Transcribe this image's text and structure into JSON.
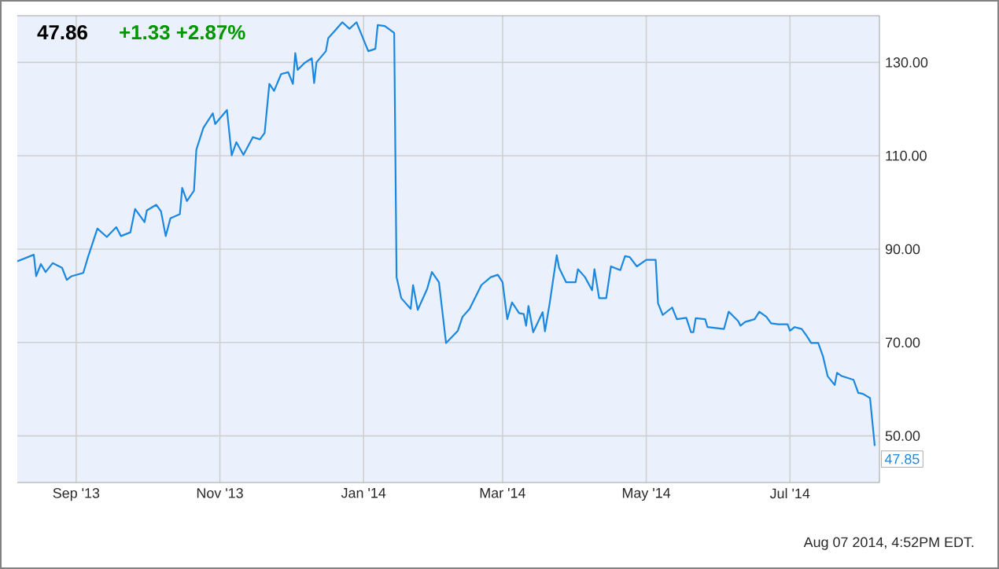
{
  "chart_data": {
    "type": "line",
    "title": "47.86",
    "subtitle": "+1.33  +2.87%",
    "x": [
      "2013-08-07",
      "2013-08-14",
      "2013-08-15",
      "2013-08-17",
      "2013-08-19",
      "2013-08-22",
      "2013-08-26",
      "2013-08-28",
      "2013-08-30",
      "2013-09-04",
      "2013-09-06",
      "2013-09-10",
      "2013-09-14",
      "2013-09-18",
      "2013-09-20",
      "2013-09-24",
      "2013-09-26",
      "2013-09-30",
      "2013-10-01",
      "2013-10-05",
      "2013-10-07",
      "2013-10-09",
      "2013-10-11",
      "2013-10-15",
      "2013-10-16",
      "2013-10-18",
      "2013-10-21",
      "2013-10-22",
      "2013-10-25",
      "2013-10-29",
      "2013-10-30",
      "2013-11-04",
      "2013-11-06",
      "2013-11-08",
      "2013-11-11",
      "2013-11-15",
      "2013-11-18",
      "2013-11-20",
      "2013-11-22",
      "2013-11-24",
      "2013-11-27",
      "2013-11-30",
      "2013-12-02",
      "2013-12-03",
      "2013-12-04",
      "2013-12-07",
      "2013-12-10",
      "2013-12-11",
      "2013-12-12",
      "2013-12-16",
      "2013-12-17",
      "2013-12-20",
      "2013-12-23",
      "2013-12-26",
      "2013-12-29",
      "2014-01-03",
      "2014-01-06",
      "2014-01-07",
      "2014-01-10",
      "2014-01-14",
      "2014-01-15",
      "2014-01-17",
      "2014-01-21",
      "2014-01-22",
      "2014-01-24",
      "2014-01-28",
      "2014-01-30",
      "2014-02-02",
      "2014-02-05",
      "2014-02-10",
      "2014-02-12",
      "2014-02-15",
      "2014-02-20",
      "2014-02-24",
      "2014-02-27",
      "2014-03-01",
      "2014-03-03",
      "2014-03-05",
      "2014-03-08",
      "2014-03-10",
      "2014-03-11",
      "2014-03-12",
      "2014-03-14",
      "2014-03-18",
      "2014-03-19",
      "2014-03-21",
      "2014-03-24",
      "2014-03-25",
      "2014-03-28",
      "2014-04-01",
      "2014-04-02",
      "2014-04-05",
      "2014-04-08",
      "2014-04-09",
      "2014-04-11",
      "2014-04-14",
      "2014-04-16",
      "2014-04-20",
      "2014-04-22",
      "2014-04-24",
      "2014-04-27",
      "2014-05-01",
      "2014-05-05",
      "2014-05-06",
      "2014-05-08",
      "2014-05-12",
      "2014-05-14",
      "2014-05-18",
      "2014-05-20",
      "2014-05-21",
      "2014-05-22",
      "2014-05-26",
      "2014-05-27",
      "2014-06-03",
      "2014-06-05",
      "2014-06-09",
      "2014-06-10",
      "2014-06-12",
      "2014-06-16",
      "2014-06-18",
      "2014-06-21",
      "2014-06-23",
      "2014-06-26",
      "2014-06-30",
      "2014-07-01",
      "2014-07-03",
      "2014-07-06",
      "2014-07-08",
      "2014-07-10",
      "2014-07-13",
      "2014-07-15",
      "2014-07-17",
      "2014-07-20",
      "2014-07-21",
      "2014-07-23",
      "2014-07-28",
      "2014-07-30",
      "2014-08-01",
      "2014-08-04",
      "2014-08-06"
    ],
    "series": [
      {
        "color": "#1a87e0",
        "values": [
          87.4,
          88.8,
          84.2,
          86.8,
          85.1,
          87.0,
          86.0,
          83.4,
          84.2,
          84.9,
          88.3,
          94.4,
          92.6,
          94.7,
          92.8,
          93.6,
          98.6,
          95.8,
          98.3,
          99.5,
          98.1,
          92.8,
          96.6,
          97.5,
          103.1,
          100.3,
          102.5,
          111.3,
          116.0,
          119.1,
          116.8,
          119.8,
          110.1,
          112.9,
          110.2,
          114.0,
          113.5,
          114.9,
          125.4,
          123.9,
          127.5,
          127.9,
          125.4,
          132.0,
          128.4,
          129.9,
          130.9,
          125.6,
          130.0,
          132.4,
          135.2,
          136.9,
          138.6,
          137.2,
          138.6,
          132.4,
          132.9,
          138.0,
          137.8,
          136.3,
          84.0,
          79.5,
          77.2,
          82.3,
          77.0,
          81.5,
          85.1,
          82.9,
          69.9,
          72.5,
          75.5,
          77.2,
          82.3,
          84.0,
          84.5,
          82.9,
          75.0,
          78.6,
          76.3,
          76.1,
          73.6,
          77.8,
          72.2,
          76.5,
          72.4,
          78.4,
          88.7,
          86.0,
          82.9,
          82.9,
          85.7,
          84.0,
          81.2,
          85.7,
          79.5,
          79.5,
          86.3,
          85.5,
          88.5,
          88.3,
          86.3,
          87.7,
          87.7,
          78.4,
          75.9,
          77.5,
          75.0,
          75.3,
          72.2,
          72.2,
          75.2,
          75.0,
          73.3,
          72.9,
          76.6,
          74.6,
          73.6,
          74.4,
          75.0,
          76.6,
          75.5,
          74.1,
          73.9,
          73.9,
          72.5,
          73.3,
          72.9,
          71.5,
          69.9,
          69.9,
          67.1,
          62.8,
          60.9,
          63.5,
          62.8,
          62.0,
          59.2,
          59.0,
          58.1,
          47.85
        ]
      }
    ],
    "xlim": [
      "2013-08-07",
      "2014-08-08"
    ],
    "xticks": [
      {
        "value": "2013-09-01",
        "label": "Sep '13"
      },
      {
        "value": "2013-11-01",
        "label": "Nov '13"
      },
      {
        "value": "2014-01-01",
        "label": "Jan '14"
      },
      {
        "value": "2014-03-01",
        "label": "Mar '14"
      },
      {
        "value": "2014-05-01",
        "label": "May '14"
      },
      {
        "value": "2014-07-01",
        "label": "Jul '14"
      }
    ],
    "ylim": [
      40,
      140
    ],
    "yticks": [
      {
        "value": 50,
        "label": "50.00"
      },
      {
        "value": 70,
        "label": "70.00"
      },
      {
        "value": 90,
        "label": "90.00"
      },
      {
        "value": 110,
        "label": "110.00"
      },
      {
        "value": 130,
        "label": "130.00"
      }
    ],
    "grid": true,
    "marker": "none",
    "line_style": "solid",
    "annotations": [
      {
        "text": "47.85",
        "x": "2014-08-06",
        "y": 47.85
      },
      "Aug 07 2014, 4:52PM EDT."
    ]
  }
}
